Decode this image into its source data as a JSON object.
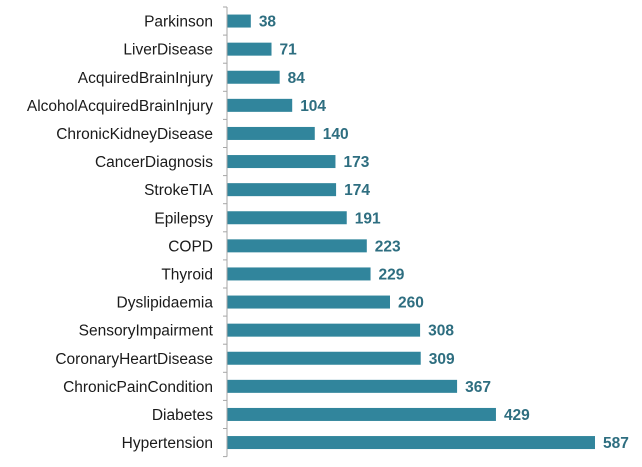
{
  "chart_data": {
    "type": "bar",
    "orientation": "horizontal",
    "categories": [
      "Parkinson",
      "LiverDisease",
      "AcquiredBrainInjury",
      "AlcoholAcquiredBrainInjury",
      "ChronicKidneyDisease",
      "CancerDiagnosis",
      "StrokeTIA",
      "Epilepsy",
      "COPD",
      "Thyroid",
      "Dyslipidaemia",
      "SensoryImpairment",
      "CoronaryHeartDisease",
      "ChronicPainCondition",
      "Diabetes",
      "Hypertension"
    ],
    "values": [
      38,
      71,
      84,
      104,
      140,
      173,
      174,
      191,
      223,
      229,
      260,
      308,
      309,
      367,
      429,
      587
    ],
    "xlim": [
      0,
      600
    ],
    "grid": false,
    "legend": "none",
    "bar_color": "#31859C",
    "label_color": "#2E6E80",
    "axis_color": "#A6A6A6"
  }
}
